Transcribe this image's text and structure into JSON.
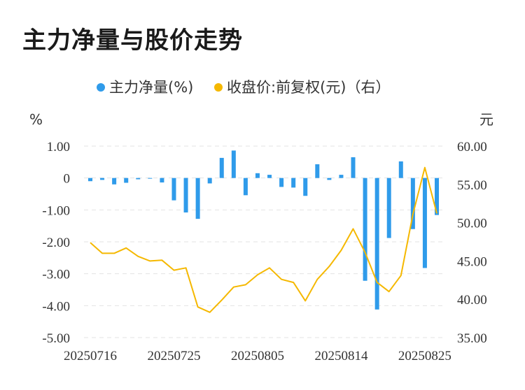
{
  "title": "主力净量与股价走势",
  "chart_data": {
    "type": "bar+line",
    "legend": [
      {
        "label": "主力净量(%)",
        "color": "#2f9bea",
        "marker": "dot"
      },
      {
        "label": "收盘价:前复权(元)（右）",
        "color": "#f5b800",
        "marker": "dot"
      }
    ],
    "left_unit": "%",
    "right_unit": "元",
    "left_axis": {
      "min": -5,
      "max": 1,
      "ticks": [
        1,
        0,
        -1,
        -2,
        -3,
        -4,
        -5
      ],
      "tick_labels": [
        "1.00",
        "0",
        "-1.00",
        "-2.00",
        "-3.00",
        "-4.00",
        "-5.00"
      ]
    },
    "right_axis": {
      "min": 35,
      "max": 60,
      "ticks": [
        60,
        55,
        50,
        45,
        40,
        35
      ],
      "tick_labels": [
        "60.00",
        "55.00",
        "50.00",
        "45.00",
        "40.00",
        "35.00"
      ]
    },
    "x_tick_labels": [
      "20250716",
      "20250725",
      "20250805",
      "20250814",
      "20250825"
    ],
    "x_tick_index": [
      0,
      7,
      14,
      21,
      28
    ],
    "dates": [
      "20250716",
      "20250717",
      "20250718",
      "20250721",
      "20250722",
      "20250723",
      "20250724",
      "20250725",
      "20250728",
      "20250729",
      "20250730",
      "20250731",
      "20250801",
      "20250804",
      "20250805",
      "20250806",
      "20250807",
      "20250808",
      "20250811",
      "20250812",
      "20250813",
      "20250814",
      "20250815",
      "20250818",
      "20250819",
      "20250820",
      "20250821",
      "20250822",
      "20250825",
      "20250826"
    ],
    "series": [
      {
        "name": "主力净量(%)",
        "kind": "bar",
        "axis": "left",
        "color": "#2f9bea",
        "values": [
          -0.1,
          -0.06,
          -0.2,
          -0.15,
          -0.04,
          -0.01,
          -0.14,
          -0.7,
          -1.08,
          -1.28,
          -0.17,
          0.63,
          0.86,
          -0.54,
          0.15,
          0.1,
          -0.28,
          -0.3,
          -0.56,
          0.43,
          -0.06,
          0.1,
          0.65,
          -3.22,
          -4.12,
          -1.88,
          0.52,
          -1.6,
          -2.82,
          -1.16
        ]
      },
      {
        "name": "收盘价:前复权(元)（右）",
        "kind": "line",
        "axis": "right",
        "color": "#f5b800",
        "values": [
          47.4,
          46.0,
          46.0,
          46.7,
          45.6,
          45.0,
          45.1,
          43.8,
          44.1,
          39.0,
          38.3,
          39.9,
          41.6,
          41.9,
          43.2,
          44.1,
          42.6,
          42.2,
          39.8,
          42.6,
          44.3,
          46.4,
          49.2,
          46.1,
          42.2,
          41.0,
          43.1,
          51.1,
          57.2,
          51.2
        ]
      }
    ]
  }
}
